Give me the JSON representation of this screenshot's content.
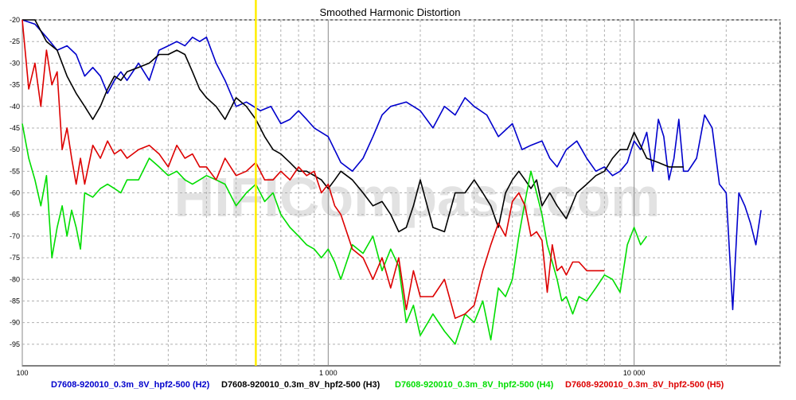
{
  "chart_data": {
    "type": "line",
    "title": "Smoothed Harmonic Distortion",
    "x_scale": "log",
    "xlim": [
      100,
      30000
    ],
    "ylim": [
      -100,
      -20
    ],
    "x_ticks": [
      {
        "value": 100,
        "label": "100"
      },
      {
        "value": 1000,
        "label": "1 000"
      },
      {
        "value": 10000,
        "label": "10 000"
      }
    ],
    "y_ticks": [
      -20,
      -25,
      -30,
      -35,
      -40,
      -45,
      -50,
      -55,
      -60,
      -65,
      -70,
      -75,
      -80,
      -85,
      -90,
      -95
    ],
    "grid": true,
    "legend_position": "bottom",
    "watermark": "HIFICompass.com",
    "marker_x": 580,
    "series": [
      {
        "name": "D7608-920010_0.3m_8V_hpf2-500 (H2)",
        "color": "#0000cc",
        "x": [
          100,
          110,
          120,
          130,
          140,
          150,
          160,
          170,
          180,
          190,
          200,
          210,
          220,
          240,
          260,
          280,
          300,
          320,
          340,
          360,
          380,
          400,
          430,
          460,
          500,
          540,
          570,
          600,
          650,
          700,
          750,
          800,
          850,
          900,
          1000,
          1100,
          1200,
          1300,
          1400,
          1500,
          1600,
          1800,
          2000,
          2200,
          2400,
          2600,
          2800,
          3000,
          3300,
          3600,
          4000,
          4300,
          4600,
          5000,
          5300,
          5600,
          6000,
          6500,
          7000,
          7500,
          8000,
          8500,
          9000,
          9500,
          10000,
          10500,
          11000,
          11500,
          12000,
          12500,
          13000,
          13500,
          14000,
          14500,
          15000,
          16000,
          17000,
          18000,
          19000,
          20000,
          21000,
          22000,
          23000,
          24000,
          25000,
          26000
        ],
        "y": [
          -19,
          -21,
          -24,
          -27,
          -26,
          -28,
          -33,
          -31,
          -33,
          -37,
          -34,
          -32,
          -34,
          -30,
          -34,
          -27,
          -26,
          -25,
          -26,
          -24,
          -25,
          -24,
          -30,
          -34,
          -40,
          -39,
          -40,
          -41,
          -40,
          -44,
          -43,
          -41,
          -43,
          -45,
          -47,
          -53,
          -55,
          -52,
          -47,
          -42,
          -40,
          -39,
          -41,
          -45,
          -40,
          -42,
          -38,
          -40,
          -42,
          -47,
          -44,
          -50,
          -49,
          -48,
          -52,
          -54,
          -50,
          -48,
          -52,
          -55,
          -54,
          -56,
          -55,
          -53,
          -48,
          -50,
          -46,
          -55,
          -43,
          -47,
          -57,
          -52,
          -43,
          -55,
          -55,
          -52,
          -42,
          -45,
          -58,
          -60,
          -87,
          -60,
          -63,
          -67,
          -72,
          -64
        ],
        "labels": []
      },
      {
        "name": "D7608-920010_0.3m_8V_hpf2-500 (H3)",
        "color": "#000000",
        "x": [
          100,
          110,
          120,
          130,
          140,
          150,
          160,
          170,
          180,
          190,
          200,
          210,
          220,
          240,
          260,
          280,
          300,
          320,
          340,
          360,
          380,
          400,
          430,
          460,
          500,
          540,
          580,
          620,
          660,
          700,
          750,
          800,
          850,
          900,
          950,
          1000,
          1050,
          1100,
          1200,
          1300,
          1400,
          1500,
          1600,
          1700,
          1800,
          1900,
          2000,
          2200,
          2400,
          2600,
          2800,
          3000,
          3200,
          3400,
          3600,
          3800,
          4000,
          4200,
          4400,
          4600,
          4800,
          5000,
          5300,
          5600,
          6000,
          6500,
          7000,
          7500,
          8000,
          8500,
          9000,
          9500,
          10000,
          11000,
          12000,
          13000,
          14000,
          14500
        ],
        "y": [
          -18,
          -20,
          -25,
          -27,
          -33,
          -37,
          -40,
          -43,
          -40,
          -36,
          -33,
          -34,
          -32,
          -31,
          -30,
          -28,
          -28,
          -27,
          -28,
          -32,
          -36,
          -38,
          -40,
          -43,
          -38,
          -40,
          -43,
          -47,
          -50,
          -51,
          -53,
          -55,
          -55,
          -56,
          -57,
          -59,
          -57,
          -55,
          -57,
          -60,
          -63,
          -62,
          -65,
          -69,
          -68,
          -63,
          -57,
          -68,
          -69,
          -60,
          -60,
          -57,
          -60,
          -63,
          -68,
          -60,
          -57,
          -55,
          -57,
          -59,
          -57,
          -63,
          -60,
          -63,
          -66,
          -60,
          -58,
          -56,
          -55,
          -52,
          -50,
          -50,
          -46,
          -52,
          -53,
          -54,
          -54,
          -54
        ],
        "labels": []
      },
      {
        "name": "D7608-920010_0.3m_8V_hpf2-500 (H4)",
        "color": "#00dd00",
        "x": [
          100,
          105,
          110,
          115,
          120,
          125,
          130,
          135,
          140,
          145,
          150,
          155,
          160,
          170,
          180,
          190,
          200,
          210,
          220,
          240,
          260,
          280,
          300,
          320,
          340,
          360,
          380,
          400,
          430,
          460,
          500,
          540,
          580,
          620,
          660,
          700,
          750,
          800,
          850,
          900,
          950,
          1000,
          1050,
          1100,
          1200,
          1300,
          1400,
          1500,
          1600,
          1700,
          1800,
          1900,
          2000,
          2200,
          2400,
          2600,
          2800,
          3000,
          3200,
          3400,
          3600,
          3800,
          4000,
          4200,
          4400,
          4600,
          4800,
          5000,
          5200,
          5400,
          5600,
          5800,
          6000,
          6300,
          6600,
          7000,
          7500,
          8000,
          8500,
          9000,
          9500,
          10000,
          10500,
          11000
        ],
        "y": [
          -44,
          -52,
          -57,
          -63,
          -56,
          -75,
          -68,
          -63,
          -70,
          -64,
          -68,
          -73,
          -60,
          -61,
          -59,
          -58,
          -59,
          -60,
          -57,
          -57,
          -52,
          -54,
          -56,
          -55,
          -57,
          -58,
          -57,
          -56,
          -57,
          -58,
          -63,
          -60,
          -58,
          -62,
          -60,
          -65,
          -68,
          -70,
          -72,
          -73,
          -75,
          -73,
          -76,
          -80,
          -72,
          -74,
          -70,
          -78,
          -73,
          -77,
          -90,
          -86,
          -93,
          -88,
          -92,
          -95,
          -88,
          -90,
          -85,
          -94,
          -82,
          -84,
          -80,
          -70,
          -62,
          -55,
          -60,
          -65,
          -72,
          -76,
          -80,
          -85,
          -84,
          -88,
          -84,
          -85,
          -82,
          -79,
          -80,
          -83,
          -72,
          -68,
          -72,
          -70
        ],
        "labels": []
      },
      {
        "name": "D7608-920010_0.3m_8V_hpf2-500 (H5)",
        "color": "#dd0000",
        "x": [
          100,
          105,
          110,
          115,
          120,
          125,
          130,
          135,
          140,
          145,
          150,
          155,
          160,
          170,
          180,
          190,
          200,
          210,
          220,
          240,
          260,
          280,
          300,
          320,
          340,
          360,
          380,
          400,
          430,
          460,
          500,
          540,
          580,
          620,
          660,
          700,
          750,
          800,
          850,
          900,
          950,
          1000,
          1050,
          1100,
          1200,
          1300,
          1400,
          1500,
          1600,
          1700,
          1800,
          1900,
          2000,
          2200,
          2400,
          2600,
          2800,
          3000,
          3200,
          3400,
          3600,
          3800,
          4000,
          4200,
          4400,
          4600,
          4800,
          5000,
          5200,
          5400,
          5600,
          5800,
          6000,
          6300,
          6600,
          7000,
          7500,
          8000
        ],
        "y": [
          -18,
          -36,
          -30,
          -40,
          -27,
          -35,
          -32,
          -50,
          -45,
          -52,
          -58,
          -52,
          -58,
          -49,
          -52,
          -48,
          -51,
          -50,
          -52,
          -50,
          -49,
          -51,
          -54,
          -49,
          -52,
          -51,
          -54,
          -54,
          -57,
          -52,
          -56,
          -55,
          -53,
          -57,
          -57,
          -55,
          -57,
          -54,
          -56,
          -55,
          -60,
          -58,
          -63,
          -65,
          -73,
          -75,
          -80,
          -75,
          -82,
          -75,
          -87,
          -78,
          -84,
          -84,
          -80,
          -89,
          -88,
          -86,
          -78,
          -72,
          -67,
          -70,
          -62,
          -60,
          -63,
          -70,
          -69,
          -71,
          -83,
          -72,
          -78,
          -77,
          -79,
          -76,
          -76,
          -78,
          -78,
          -78
        ],
        "labels": []
      }
    ]
  }
}
